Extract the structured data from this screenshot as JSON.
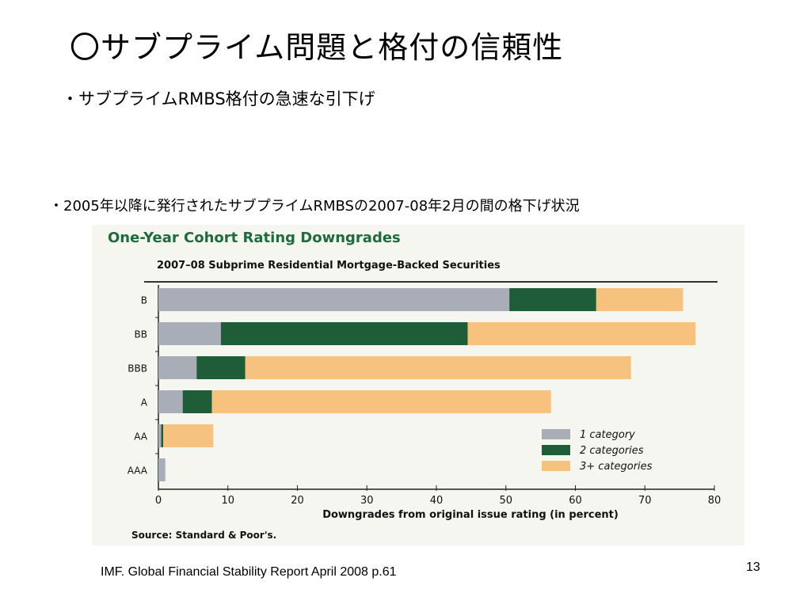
{
  "slide": {
    "title": "〇サブプライム問題と格付の信頼性",
    "bullet1": "・サブプライムRMBS格付の急速な引下げ",
    "bullet2": "・2005年以降に発行されたサブプライムRMBSの2007-08年2月の間の格下げ状況",
    "footer": "IMF. Global Financial Stability Report  April 2008 p.61",
    "page_number": "13"
  },
  "chart_data": {
    "type": "bar",
    "orientation": "horizontal",
    "stacked": true,
    "title": "One-Year Cohort Rating Downgrades",
    "subtitle": "2007–08 Subprime Residential Mortgage-Backed Securities",
    "xlabel": "Downgrades from original issue rating (in percent)",
    "source": "Source: Standard & Poor's.",
    "categories": [
      "B",
      "BB",
      "BBB",
      "A",
      "AA",
      "AAA"
    ],
    "series": [
      {
        "name": "1 category",
        "color": "#a9adb8",
        "values": [
          50.5,
          9,
          5.5,
          3.5,
          0.4,
          1
        ]
      },
      {
        "name": "2 categories",
        "color": "#1f5c38",
        "values": [
          12.5,
          35.5,
          7,
          4.2,
          0.3,
          0
        ]
      },
      {
        "name": "3+ categories",
        "color": "#f6c27e",
        "values": [
          12.5,
          32.8,
          55.5,
          48.8,
          7.2,
          0
        ]
      }
    ],
    "xlim": [
      0,
      80
    ],
    "xticks": [
      0,
      10,
      20,
      30,
      40,
      50,
      60,
      70,
      80
    ],
    "legend_position": "bottom-right",
    "grid": false
  }
}
